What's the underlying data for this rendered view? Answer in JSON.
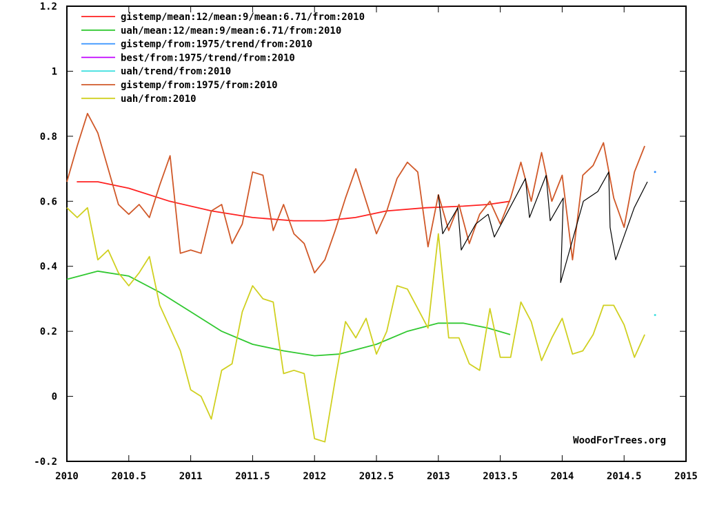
{
  "chart_data": {
    "type": "line",
    "title": "",
    "xlabel": "",
    "ylabel": "",
    "xlim": [
      2010,
      2015
    ],
    "ylim": [
      -0.2,
      1.2
    ],
    "grid": false,
    "legend_position": "top-left",
    "x_ticks": [
      "2010",
      "2010.5",
      "2011",
      "2011.5",
      "2012",
      "2012.5",
      "2013",
      "2013.5",
      "2014",
      "2014.5",
      "2015"
    ],
    "x_tick_values": [
      2010,
      2010.5,
      2011,
      2011.5,
      2012,
      2012.5,
      2013,
      2013.5,
      2014,
      2014.5,
      2015
    ],
    "y_ticks": [
      "-0.2",
      "0",
      "0.2",
      "0.4",
      "0.6",
      "0.8",
      "1",
      "1.2"
    ],
    "y_tick_values": [
      -0.2,
      0,
      0.2,
      0.4,
      0.6,
      0.8,
      1,
      1.2
    ],
    "credit": "WoodForTrees.org",
    "monthly_start": 2010.0,
    "series": [
      {
        "name": "gistemp/mean:12/mean:9/mean:6.71/from:2010",
        "color": "#ff2020",
        "in_legend": true,
        "x": [
          2010.08,
          2010.25,
          2010.5,
          2010.83,
          2011.17,
          2011.5,
          2011.83,
          2012.08,
          2012.33,
          2012.58,
          2012.9,
          2013.2,
          2013.4,
          2013.58
        ],
        "y": [
          0.66,
          0.66,
          0.64,
          0.6,
          0.57,
          0.55,
          0.54,
          0.54,
          0.55,
          0.57,
          0.58,
          0.585,
          0.59,
          0.6
        ]
      },
      {
        "name": "uah/mean:12/mean:9/mean:6.71/from:2010",
        "color": "#30c830",
        "in_legend": true,
        "x": [
          2010.0,
          2010.25,
          2010.5,
          2010.75,
          2011.0,
          2011.25,
          2011.5,
          2011.75,
          2012.0,
          2012.2,
          2012.5,
          2012.75,
          2013.0,
          2013.2,
          2013.4,
          2013.58
        ],
        "y": [
          0.36,
          0.385,
          0.37,
          0.32,
          0.26,
          0.2,
          0.16,
          0.14,
          0.125,
          0.13,
          0.16,
          0.2,
          0.225,
          0.225,
          0.21,
          0.19
        ]
      },
      {
        "name": "gistemp/from:1975/trend/from:2010",
        "color": "#3090ff",
        "in_legend": true,
        "x": [
          2014.75
        ],
        "y": [
          0.69
        ]
      },
      {
        "name": "best/from:1975/trend/from:2010",
        "color": "#c000ff",
        "in_legend": true,
        "x": [],
        "y": []
      },
      {
        "name": "uah/trend/from:2010",
        "color": "#40e0e0",
        "in_legend": true,
        "x": [
          2014.75
        ],
        "y": [
          0.25
        ]
      },
      {
        "name": "gistemp/from:1975/from:2010",
        "color": "#d05828",
        "in_legend": true,
        "monthly": true,
        "y": [
          0.66,
          0.77,
          0.87,
          0.81,
          0.7,
          0.59,
          0.56,
          0.59,
          0.55,
          0.65,
          0.74,
          0.44,
          0.45,
          0.44,
          0.57,
          0.59,
          0.47,
          0.53,
          0.69,
          0.68,
          0.51,
          0.59,
          0.5,
          0.47,
          0.38,
          0.42,
          0.51,
          0.61,
          0.7,
          0.6,
          0.5,
          0.57,
          0.67,
          0.72,
          0.69,
          0.46,
          0.62,
          0.51,
          0.59,
          0.47,
          0.56,
          0.6,
          0.53,
          0.61,
          0.72,
          0.6,
          0.75,
          0.6,
          0.68,
          0.42,
          0.68,
          0.71,
          0.78,
          0.61,
          0.52,
          0.69,
          0.77
        ]
      },
      {
        "name": "uah/from:2010",
        "color": "#d0d020",
        "in_legend": true,
        "monthly": true,
        "y": [
          0.58,
          0.55,
          0.58,
          0.42,
          0.45,
          0.38,
          0.34,
          0.38,
          0.43,
          0.28,
          0.21,
          0.14,
          0.02,
          0.0,
          -0.07,
          0.08,
          0.1,
          0.26,
          0.34,
          0.3,
          0.29,
          0.07,
          0.08,
          0.07,
          -0.13,
          -0.14,
          0.05,
          0.23,
          0.18,
          0.24,
          0.13,
          0.2,
          0.34,
          0.33,
          0.27,
          0.21,
          0.5,
          0.18,
          0.18,
          0.1,
          0.08,
          0.27,
          0.12,
          0.12,
          0.29,
          0.23,
          0.11,
          0.18,
          0.24,
          0.13,
          0.14,
          0.19,
          0.28,
          0.28,
          0.22,
          0.12,
          0.19
        ]
      },
      {
        "color": "#000000",
        "in_legend": false,
        "x": [
          2013.0,
          2013.035,
          2013.157,
          2013.185,
          2013.302,
          2013.402,
          2013.452,
          2013.703,
          2013.736,
          2013.87,
          2013.903,
          2014.009,
          2013.987,
          2014.171,
          2014.288,
          2014.376,
          2014.387,
          2014.432,
          2014.582,
          2014.688
        ],
        "y": [
          0.62,
          0.5,
          0.58,
          0.45,
          0.53,
          0.56,
          0.49,
          0.67,
          0.55,
          0.68,
          0.54,
          0.61,
          0.35,
          0.6,
          0.63,
          0.69,
          0.52,
          0.42,
          0.58,
          0.66
        ]
      }
    ]
  }
}
